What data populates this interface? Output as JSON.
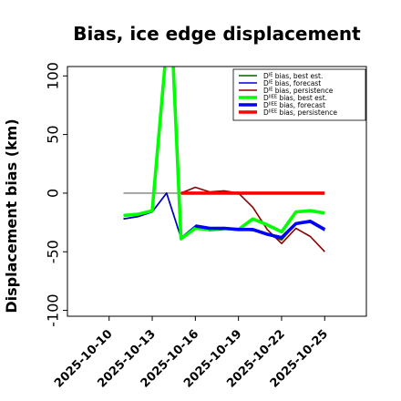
{
  "chart_data": {
    "type": "line",
    "title": "Bias, ice edge displacement",
    "ylabel": "Displacement bias (km)",
    "xlabel": "",
    "ylim": [
      -105,
      108
    ],
    "yticks": [
      -100,
      -50,
      0,
      50,
      100
    ],
    "ytick_labels": [
      "-100",
      "-50",
      "0",
      "50",
      "100"
    ],
    "xlim": [
      7.1,
      27.9
    ],
    "xticks": [
      10,
      13,
      16,
      19,
      22,
      25
    ],
    "xtick_labels": [
      "2025-10-10",
      "2025-10-13",
      "2025-10-16",
      "2025-10-19",
      "2025-10-22",
      "2025-10-25"
    ],
    "xtick_colors": [
      "#000000",
      "#000000",
      "#228b22",
      "#000000",
      "#000000",
      "#000000"
    ],
    "legend_position": "top-right",
    "zero_line": {
      "x": [
        11,
        15
      ],
      "y": 0,
      "color": "#808080"
    },
    "series": [
      {
        "name": "Dᴵᴱ bias, best est.",
        "label_base": "D",
        "label_sup": "IE",
        "label_rest": " bias, best est.",
        "color": "#006400",
        "width": 1.6,
        "x": [
          11,
          12,
          13,
          14,
          15,
          16,
          17,
          18,
          19,
          20,
          21,
          22,
          23,
          24,
          25
        ],
        "y": [
          -22,
          -20,
          -16,
          0,
          -38,
          -30,
          -32,
          -31,
          -31,
          -32,
          -35,
          -40,
          -26,
          -25,
          -32
        ]
      },
      {
        "name": "Dᴵᴱ bias, forecast",
        "label_base": "D",
        "label_sup": "IE",
        "label_rest": " bias, forecast",
        "color": "#0000cd",
        "width": 1.6,
        "x": [
          11,
          12,
          13,
          14,
          15,
          16,
          17,
          18,
          19,
          20,
          21,
          22,
          23,
          24,
          25
        ],
        "y": [
          -22,
          -20,
          -16,
          0,
          -38,
          -28,
          -31,
          -30,
          -31,
          -31,
          -35,
          -38,
          -26,
          -24,
          -31
        ]
      },
      {
        "name": "Dᴵᴱ bias, persistence",
        "label_base": "D",
        "label_sup": "IE",
        "label_rest": " bias, persistence",
        "color": "#8b0000",
        "width": 1.6,
        "x": [
          15,
          16,
          17,
          18,
          19,
          20,
          21,
          22,
          23,
          24,
          25
        ],
        "y": [
          0,
          5,
          1,
          2,
          0,
          -12,
          -31,
          -43,
          -30,
          -37,
          -50
        ]
      },
      {
        "name": "Dᴵᴱᴱ bias, best est.",
        "label_base": "D",
        "label_sup": "IIEE",
        "label_rest": " bias, best est.",
        "color": "#00ff00",
        "width": 3.6,
        "x": [
          11,
          12,
          13,
          14,
          14.4,
          15,
          16,
          17,
          18,
          19,
          20,
          21,
          22,
          23,
          24,
          25
        ],
        "y": [
          -19,
          -18,
          -15,
          125,
          125,
          -39,
          -30,
          -31,
          -30,
          -31,
          -22,
          -27,
          -33,
          -16,
          -15,
          -17
        ]
      },
      {
        "name": "Dᴵᴱᴱ bias, forecast",
        "label_base": "D",
        "label_sup": "IIEE",
        "label_rest": " bias, forecast",
        "color": "#0000ff",
        "width": 3.6,
        "x": [
          16,
          17,
          18,
          19,
          20,
          21,
          22,
          23,
          24,
          25
        ],
        "y": [
          -28,
          -30,
          -30,
          -31,
          -31,
          -35,
          -38,
          -26,
          -24,
          -31
        ]
      },
      {
        "name": "Dᴵᴱᴱ bias, persistence",
        "label_base": "D",
        "label_sup": "IIEE",
        "label_rest": " bias, persistence",
        "color": "#ff0000",
        "width": 3.6,
        "x": [
          15,
          25
        ],
        "y": [
          0,
          0
        ]
      }
    ]
  }
}
